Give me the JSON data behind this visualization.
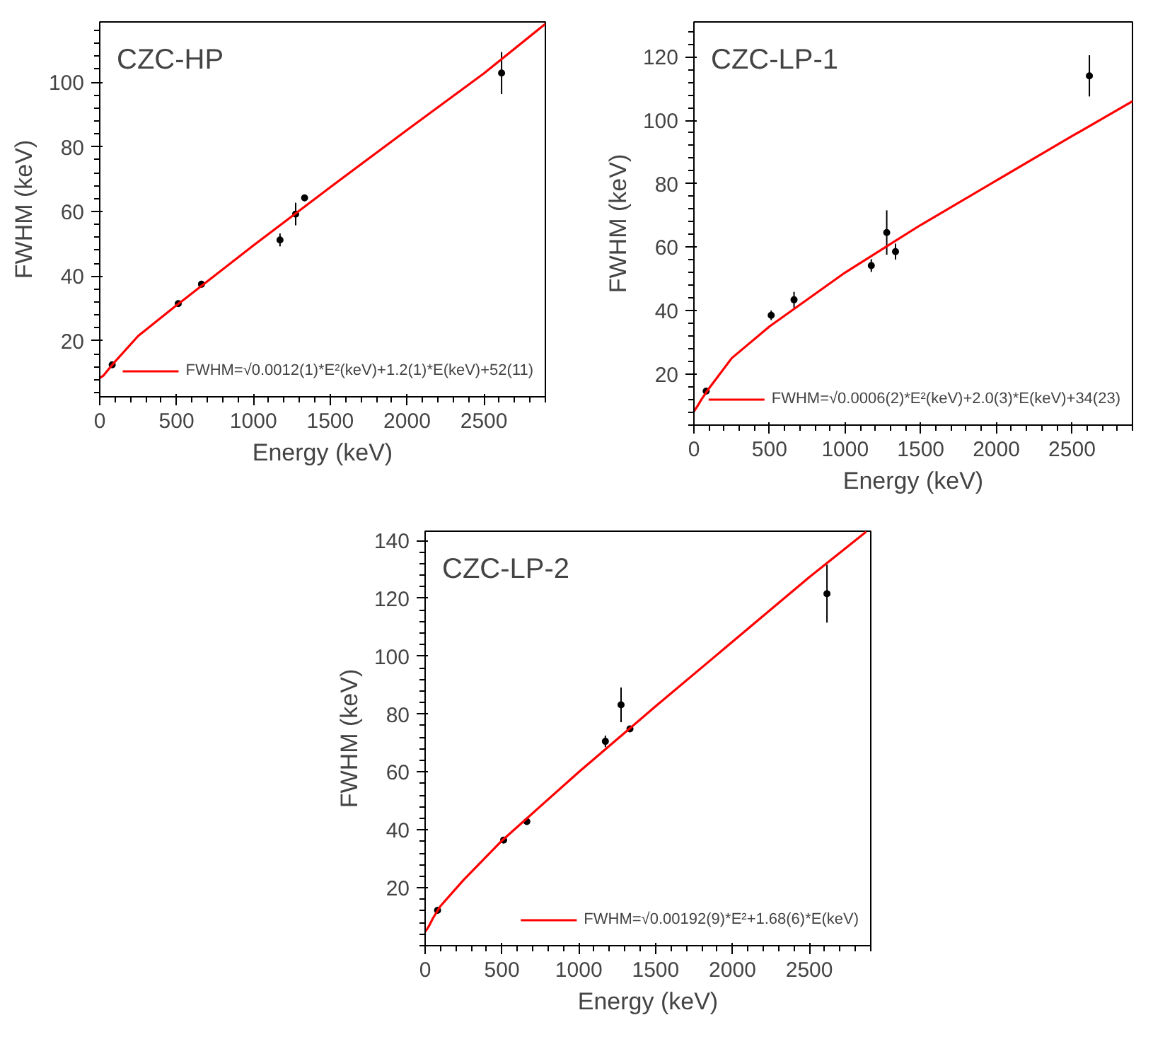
{
  "chart_data": [
    {
      "type": "scatter",
      "title": "CZC-HP",
      "xlabel": "Energy (keV)",
      "ylabel": "FWHM (keV)",
      "xlim": [
        0,
        2900
      ],
      "ylim": [
        2.7,
        118.6
      ],
      "xticks": [
        0,
        500,
        1000,
        1500,
        2000,
        2500
      ],
      "yticks": [
        20,
        40,
        60,
        80,
        100
      ],
      "grid": false,
      "legend": "bottom right",
      "series": [
        {
          "marker": "circle",
          "color": "#000000",
          "x": [
            81,
            511,
            662,
            1173,
            1275,
            1333,
            2615
          ],
          "values": [
            12.6,
            31.5,
            37.5,
            51.2,
            59.2,
            64.2,
            102.8
          ],
          "errors": [
            0.5,
            0.5,
            1,
            2,
            3.5,
            1,
            6.5
          ]
        },
        {
          "type": "line",
          "name": "FWHM=√0.0012(1)*E²(keV)+1.2(1)*E(keV)+52(11)",
          "color": "#ff0000",
          "x": [
            0,
            25,
            50,
            100,
            250,
            500,
            1000,
            1500,
            2000,
            2500,
            2900
          ],
          "values": [
            8.5,
            9.3,
            10.8,
            13.6,
            21.5,
            31,
            49.5,
            67.5,
            85.2,
            102.7,
            118
          ]
        }
      ]
    },
    {
      "type": "scatter",
      "title": "CZC-LP-1",
      "xlabel": "Energy (keV)",
      "ylabel": "FWHM (keV)",
      "xlim": [
        0,
        2900
      ],
      "ylim": [
        3.9,
        131
      ],
      "xticks": [
        0,
        500,
        1000,
        1500,
        2000,
        2500
      ],
      "yticks": [
        20,
        40,
        60,
        80,
        100,
        120
      ],
      "grid": false,
      "legend": "bottom right",
      "series": [
        {
          "marker": "circle",
          "color": "#000000",
          "x": [
            81,
            511,
            662,
            1173,
            1275,
            1333,
            2615
          ],
          "values": [
            14.6,
            38.5,
            43.4,
            54.2,
            64.6,
            58.6,
            114
          ],
          "errors": [
            0.5,
            1.5,
            2.5,
            2,
            7,
            2.5,
            6.5
          ]
        },
        {
          "type": "line",
          "name": "FWHM=√0.0006(2)*E²(keV)+2.0(3)*E(keV)+34(23)",
          "color": "#ff0000",
          "x": [
            0,
            25,
            50,
            100,
            250,
            500,
            1000,
            1500,
            2000,
            2500,
            2900
          ],
          "values": [
            8.2,
            10,
            12,
            15.5,
            25,
            35,
            52,
            67,
            81,
            95,
            106
          ]
        }
      ]
    },
    {
      "type": "scatter",
      "title": "CZC-LP-2",
      "xlabel": "Energy (keV)",
      "ylabel": "FWHM (keV)",
      "xlim": [
        0,
        2900
      ],
      "ylim": [
        0,
        143.2
      ],
      "xticks": [
        0,
        500,
        1000,
        1500,
        2000,
        2500
      ],
      "yticks": [
        20,
        40,
        60,
        80,
        100,
        120,
        140
      ],
      "grid": false,
      "legend": "bottom right",
      "series": [
        {
          "marker": "circle",
          "color": "#000000",
          "x": [
            81,
            511,
            662,
            1173,
            1275,
            1333,
            2615
          ],
          "values": [
            12.2,
            36.5,
            42.9,
            70.6,
            83.2,
            74.9,
            121.6
          ],
          "errors": [
            0.5,
            0.5,
            1,
            2,
            6,
            1,
            10
          ]
        },
        {
          "type": "line",
          "name": "FWHM=√0.00192(9)*E²+1.68(6)*E(keV)",
          "color": "#ff0000",
          "x": [
            0,
            10,
            25,
            50,
            100,
            250,
            500,
            1000,
            1500,
            2000,
            2500,
            2870
          ],
          "values": [
            4.8,
            5.5,
            6.8,
            9.4,
            13.7,
            22.7,
            36.3,
            60,
            82.7,
            105,
            127.3,
            143
          ]
        }
      ]
    }
  ]
}
